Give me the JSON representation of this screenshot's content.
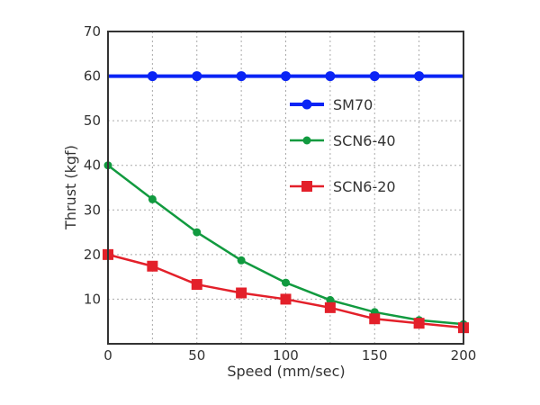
{
  "chart_data": {
    "type": "line",
    "xlabel": "Speed (mm/sec)",
    "ylabel": "Thrust (kgf)",
    "xlim": [
      0,
      200
    ],
    "ylim": [
      0,
      70
    ],
    "xticks": [
      "0",
      "50",
      "100",
      "150",
      "200"
    ],
    "yticks": [
      "10",
      "20",
      "30",
      "40",
      "50",
      "60",
      "70"
    ],
    "grid": true,
    "legend_position": "center-right",
    "series": [
      {
        "name": "SM70",
        "color": "#0a24f5",
        "marker": "circle",
        "line_x": [
          0,
          200
        ],
        "line_y": [
          60,
          60
        ],
        "x": [
          25,
          50,
          75,
          100,
          125,
          150,
          175
        ],
        "y": [
          60,
          60,
          60,
          60,
          60,
          60,
          60
        ]
      },
      {
        "name": "SCN6-40",
        "color": "#119a3f",
        "marker": "circle",
        "x": [
          0,
          25,
          50,
          75,
          100,
          125,
          150,
          175,
          200
        ],
        "y": [
          40,
          32.4,
          25.0,
          18.7,
          13.7,
          9.8,
          7.1,
          5.3,
          4.4
        ]
      },
      {
        "name": "SCN6-20",
        "color": "#e3202a",
        "marker": "square",
        "x": [
          0,
          25,
          50,
          75,
          100,
          125,
          150,
          175,
          200
        ],
        "y": [
          20,
          17.4,
          13.3,
          11.4,
          10.0,
          8.1,
          5.6,
          4.6,
          3.6
        ]
      }
    ]
  }
}
